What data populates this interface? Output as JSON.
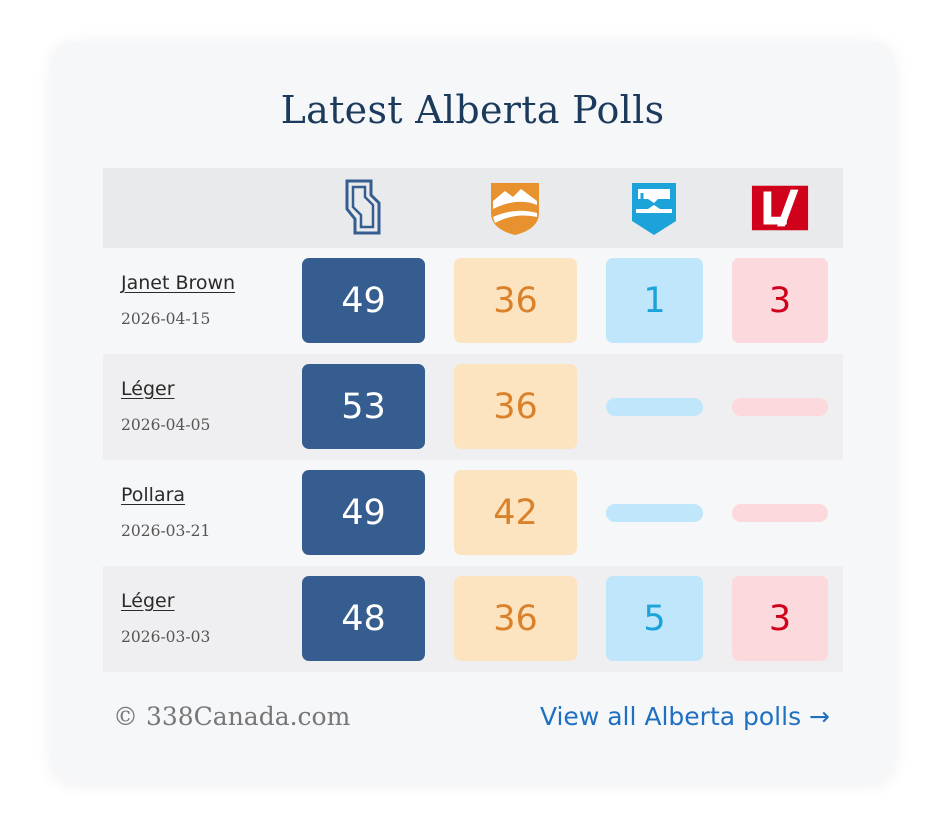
{
  "title": "Latest Alberta Polls",
  "parties": [
    {
      "icon": "alberta-outline-icon",
      "color": "#355d8f"
    },
    {
      "icon": "mountain-shield-icon",
      "color": "#d9822b"
    },
    {
      "icon": "blue-shield-icon",
      "color": "#1ca3d9"
    },
    {
      "icon": "red-logo-icon",
      "color": "#d0021b"
    }
  ],
  "polls": [
    {
      "pollster": "Janet Brown",
      "date": "2026-04-15",
      "values": [
        "49",
        "36",
        "1",
        "3"
      ]
    },
    {
      "pollster": "Léger",
      "date": "2026-04-05",
      "values": [
        "53",
        "36",
        null,
        null
      ]
    },
    {
      "pollster": "Pollara",
      "date": "2026-03-21",
      "values": [
        "49",
        "42",
        null,
        null
      ]
    },
    {
      "pollster": "Léger",
      "date": "2026-03-03",
      "values": [
        "48",
        "36",
        "5",
        "3"
      ]
    }
  ],
  "footer": {
    "copyright": "© 338Canada.com",
    "link": "View all Alberta polls →"
  }
}
